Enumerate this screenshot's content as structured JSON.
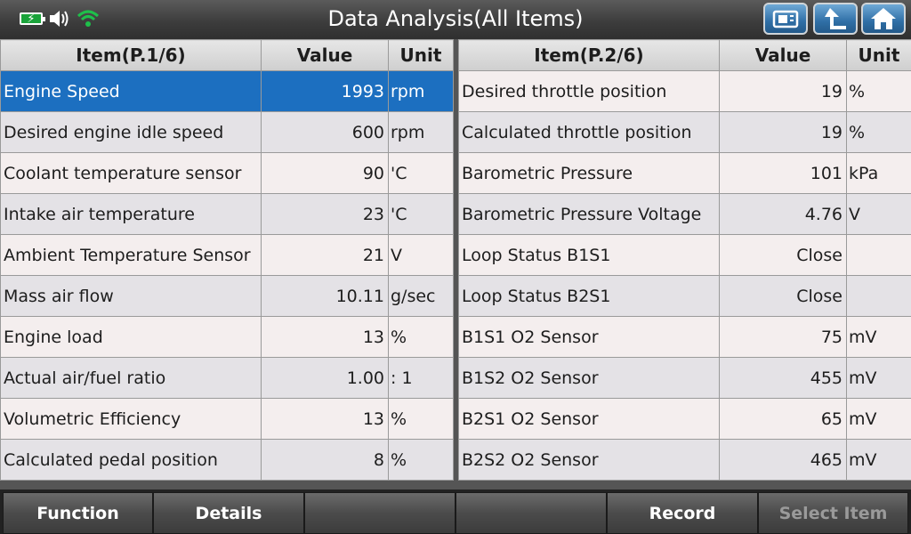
{
  "header": {
    "title": "Data Analysis(All Items)",
    "battery_icon": "battery-charging-icon",
    "sound_icon": "speaker-icon",
    "wifi_icon": "wifi-icon"
  },
  "toolbar": {
    "snapshot_icon": "snapshot-icon",
    "back_icon": "back-icon",
    "home_icon": "home-icon"
  },
  "left_table": {
    "headers": [
      "Item(P.1/6)",
      "Value",
      "Unit"
    ],
    "rows": [
      {
        "item": "Engine Speed",
        "value": "1993",
        "unit": "rpm"
      },
      {
        "item": "Desired engine idle speed",
        "value": "600",
        "unit": "rpm"
      },
      {
        "item": "Coolant temperature sensor",
        "value": "90",
        "unit": "'C"
      },
      {
        "item": "Intake air temperature",
        "value": "23",
        "unit": "'C"
      },
      {
        "item": "Ambient Temperature Sensor",
        "value": "21",
        "unit": "V"
      },
      {
        "item": "Mass air flow",
        "value": "10.11",
        "unit": "g/sec"
      },
      {
        "item": "Engine load",
        "value": "13",
        "unit": "%"
      },
      {
        "item": "Actual air/fuel ratio",
        "value": "1.00",
        "unit": ": 1"
      },
      {
        "item": "Volumetric Efficiency",
        "value": "13",
        "unit": "%"
      },
      {
        "item": "Calculated pedal position",
        "value": "8",
        "unit": "%"
      }
    ]
  },
  "right_table": {
    "headers": [
      "Item(P.2/6)",
      "Value",
      "Unit"
    ],
    "rows": [
      {
        "item": "Desired throttle position",
        "value": "19",
        "unit": "%"
      },
      {
        "item": "Calculated throttle position",
        "value": "19",
        "unit": "%"
      },
      {
        "item": "Barometric Pressure",
        "value": "101",
        "unit": "kPa"
      },
      {
        "item": "Barometric Pressure Voltage",
        "value": "4.76",
        "unit": "V"
      },
      {
        "item": "Loop Status B1S1",
        "value": "Close",
        "unit": ""
      },
      {
        "item": "Loop Status B2S1",
        "value": "Close",
        "unit": ""
      },
      {
        "item": "B1S1 O2 Sensor",
        "value": "75",
        "unit": "mV"
      },
      {
        "item": "B1S2 O2 Sensor",
        "value": "455",
        "unit": "mV"
      },
      {
        "item": "B2S1 O2 Sensor",
        "value": "65",
        "unit": "mV"
      },
      {
        "item": "B2S2 O2 Sensor",
        "value": "465",
        "unit": "mV"
      }
    ]
  },
  "bottom": {
    "buttons": [
      "Function",
      "Details",
      "",
      "",
      "Record",
      "Select Item"
    ]
  },
  "colors": {
    "selected_row": "#1c6fc0",
    "accent_green": "#1aa33a"
  }
}
